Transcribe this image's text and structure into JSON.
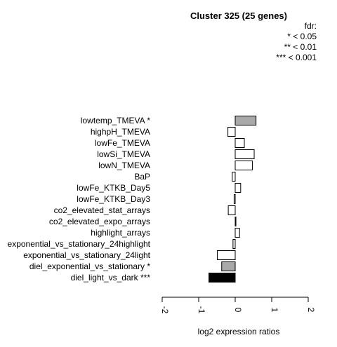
{
  "chart_data": {
    "type": "bar",
    "orientation": "horizontal",
    "title": "Cluster 325 (25 genes)",
    "xlabel": "log2 expression ratios",
    "ylabel": "",
    "xlim": [
      -2,
      2
    ],
    "xticks": [
      -2,
      -1,
      0,
      1,
      2
    ],
    "xtick_labels": [
      "-2",
      "-1",
      "0",
      "1",
      "2"
    ],
    "legend": {
      "title": "fdr:",
      "entries": [
        "* < 0.05",
        "** < 0.01",
        "*** < 0.001"
      ],
      "position": "top-right"
    },
    "categories": [
      "lowtemp_TMEVA *",
      "highpH_TMEVA",
      "lowFe_TMEVA",
      "lowSi_TMEVA",
      "lowN_TMEVA",
      "BaP",
      "lowFe_KTKB_Day5",
      "lowFe_KTKB_Day3",
      "co2_elevated_stat_arrays",
      "co2_elevated_expo_arrays",
      "highlight_arrays",
      "exponential_vs_stationary_24highlight",
      "exponential_vs_stationary_24light",
      "diel_exponential_vs_stationary *",
      "diel_light_vs_dark ***"
    ],
    "values": [
      0.57,
      -0.2,
      0.25,
      0.52,
      0.47,
      -0.08,
      0.15,
      -0.03,
      -0.19,
      0.02,
      0.12,
      -0.06,
      -0.49,
      -0.37,
      -0.72
    ],
    "fill_colors": [
      "#a9a9a9",
      "#ffffff",
      "#ffffff",
      "#ffffff",
      "#ffffff",
      "#ffffff",
      "#ffffff",
      "#ffffff",
      "#ffffff",
      "#ffffff",
      "#ffffff",
      "#ffffff",
      "#ffffff",
      "#a9a9a9",
      "#000000"
    ]
  }
}
